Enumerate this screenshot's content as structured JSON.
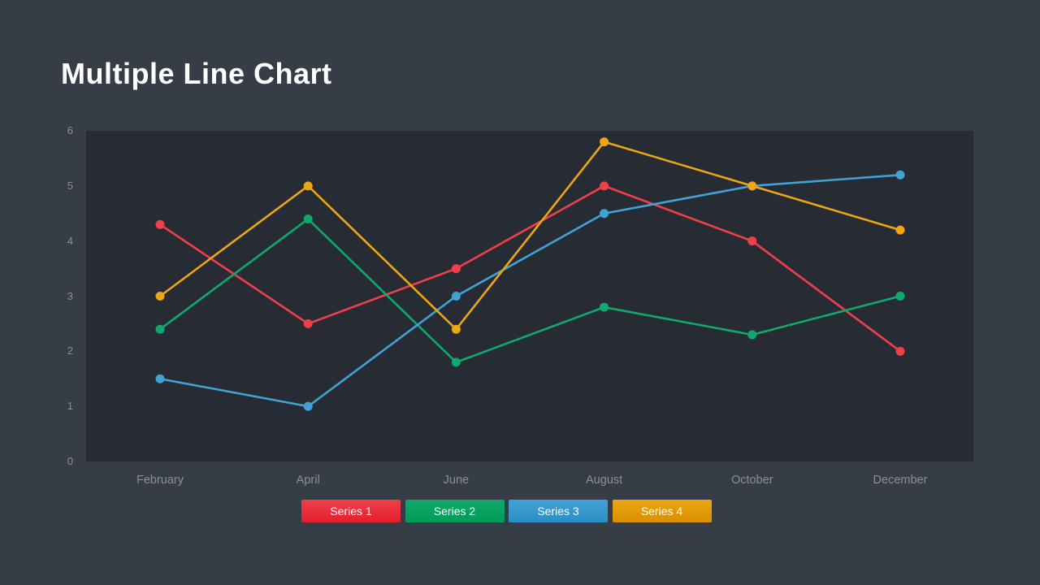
{
  "page": {
    "title": "Multiple Line Chart"
  },
  "colors": {
    "page_bg": "#373d47",
    "plot_bg": "#262b34",
    "axis_text": "#8a8f99",
    "title_text": "#ffffff"
  },
  "chart_data": {
    "type": "line",
    "title": "Multiple Line Chart",
    "categories": [
      "February",
      "April",
      "June",
      "August",
      "October",
      "December"
    ],
    "series": [
      {
        "name": "Series 1",
        "color": "#ef404a",
        "color_dark": "#e3202c",
        "values": [
          4.3,
          2.5,
          3.5,
          5.0,
          4.0,
          2.0
        ]
      },
      {
        "name": "Series 2",
        "color": "#10a96c",
        "color_dark": "#009b58",
        "values": [
          2.4,
          4.4,
          1.8,
          2.8,
          2.3,
          3.0
        ]
      },
      {
        "name": "Series 3",
        "color": "#41a2d6",
        "color_dark": "#2b8ec2",
        "values": [
          1.5,
          1.0,
          3.0,
          4.5,
          5.0,
          5.2
        ]
      },
      {
        "name": "Series 4",
        "color": "#eca712",
        "color_dark": "#d68f00",
        "values": [
          3.0,
          5.0,
          2.4,
          5.8,
          5.0,
          4.2
        ]
      }
    ],
    "xlabel": "",
    "ylabel": "",
    "ylim": [
      0,
      6
    ],
    "yticks": [
      0,
      1,
      2,
      3,
      4,
      5,
      6
    ],
    "grid": false,
    "legend_position": "bottom"
  }
}
